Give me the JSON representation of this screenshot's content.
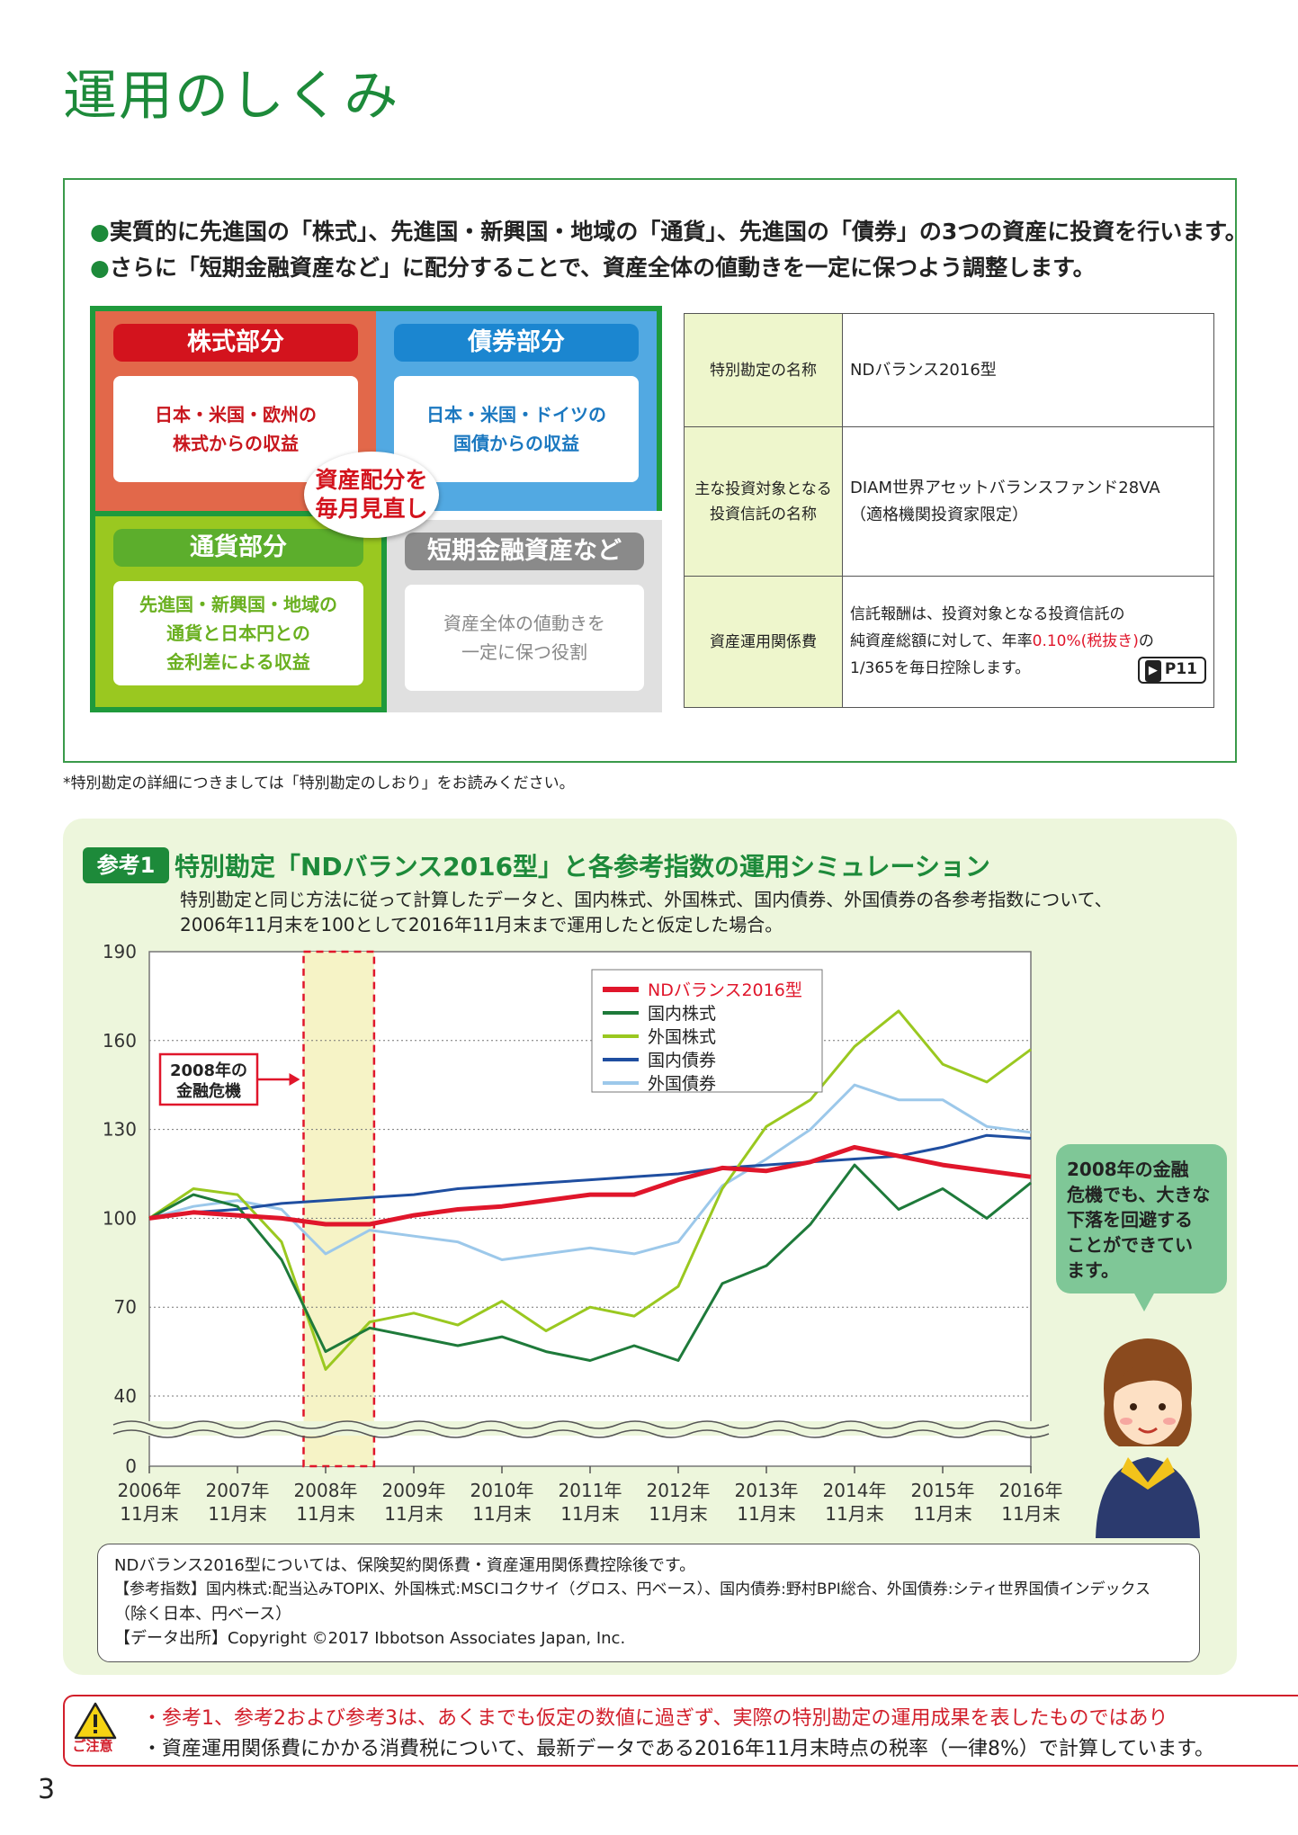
{
  "page": {
    "title": "運用のしくみ",
    "footnote": "*特別勘定の詳細につきましては「特別勘定のしおり」をお読みください。",
    "page_number": "3"
  },
  "structure": {
    "bullets": [
      "実質的に先進国の「株式」、先進国・新興国・地域の「通貨」、先進国の「債券」の3つの資産に投資を行います。",
      "さらに「短期金融資産など」に配分することで、資産全体の値動きを一定に保つよう調整します。"
    ],
    "bullet_mark": "●",
    "stock": {
      "title": "株式部分",
      "lines": [
        "日本・米国・欧州の",
        "株式からの収益"
      ]
    },
    "bond": {
      "title": "債券部分",
      "lines": [
        "日本・米国・ドイツの",
        "国債からの収益"
      ]
    },
    "currency": {
      "title": "通貨部分",
      "lines": [
        "先進国・新興国・地域の",
        "通貨と日本円との",
        "金利差による収益"
      ]
    },
    "short_term": {
      "title": "短期金融資産など",
      "lines": [
        "資産全体の値動きを",
        "一定に保つ役割"
      ]
    },
    "center": {
      "lines": [
        "資産配分を",
        "毎月見直し"
      ]
    },
    "colors": {
      "stock": "#e2684a",
      "bond": "#52a9e2",
      "currency": "#9ac820",
      "short_term": "#e0e0e0",
      "frame": "#1f9a3c"
    }
  },
  "info_table": {
    "rows": [
      {
        "key": "特別勘定の名称",
        "value_lines": [
          "NDバランス2016型"
        ]
      },
      {
        "key_lines": [
          "主な投資対象となる",
          "投資信託の名称"
        ],
        "value_lines": [
          "DIAM世界アセットバランスファンド28VA",
          "（適格機関投資家限定）"
        ]
      },
      {
        "key": "資産運用関係費",
        "fee_pre": "信託報酬は、投資対象となる投資信託の",
        "fee_mid_a": "純資産総額に対して、年率",
        "fee_rate": "0.10%(税抜き)",
        "fee_mid_b": "の",
        "fee_post": "1/365を毎日控除します。",
        "badge": "P11",
        "badge_mark": "▶"
      }
    ]
  },
  "simulation": {
    "tag": "参考1",
    "title": "特別勘定「NDバランス2016型」と各参考指数の運用シミュレーション",
    "desc_lines": [
      "特別勘定と同じ方法に従って計算したデータと、国内株式、外国株式、国内債券、外国債券の各参考指数について、",
      "2006年11月末を100として2016年11月末まで運用したと仮定した場合。"
    ],
    "speech_lines": [
      "2008年の金融",
      "危機でも、大きな",
      "下落を回避する",
      "ことができてい",
      "ます。"
    ],
    "notes": [
      "NDバランス2016型については、保険契約関係費・資産運用関係費控除後です。",
      "【参考指数】国内株式:配当込みTOPIX、外国株式:MSCIコクサイ（グロス、円ベース）、国内債券:野村BPI総合、外国債券:シティ世界国債インデックス",
      "（除く日本、円ベース）",
      "【データ出所】Copyright ©2017 Ibbotson Associates Japan, Inc."
    ]
  },
  "chart_data": {
    "type": "line",
    "y_ticks": [
      "190",
      "160",
      "130",
      "100",
      "70",
      "40",
      "0"
    ],
    "ylim": [
      40,
      190
    ],
    "y_break": true,
    "x_ticks": [
      [
        "2006年",
        "11月末"
      ],
      [
        "2007年",
        "11月末"
      ],
      [
        "2008年",
        "11月末"
      ],
      [
        "2009年",
        "11月末"
      ],
      [
        "2010年",
        "11月末"
      ],
      [
        "2011年",
        "11月末"
      ],
      [
        "2012年",
        "11月末"
      ],
      [
        "2013年",
        "11月末"
      ],
      [
        "2014年",
        "11月末"
      ],
      [
        "2015年",
        "11月末"
      ],
      [
        "2016年",
        "11月末"
      ]
    ],
    "annotation": {
      "lines": [
        "2008年の",
        "金融危機"
      ]
    },
    "x_years": [
      0,
      0.5,
      1,
      1.5,
      2,
      2.5,
      3,
      3.5,
      4,
      4.5,
      5,
      5.5,
      6,
      6.5,
      7,
      7.5,
      8,
      8.5,
      9,
      9.5,
      10
    ],
    "series": [
      {
        "name": "NDバランス2016型",
        "color": "#e0162b",
        "width": 5,
        "values": [
          100,
          102,
          101,
          100,
          98,
          98,
          101,
          103,
          104,
          106,
          108,
          108,
          113,
          117,
          116,
          119,
          124,
          121,
          118,
          116,
          114
        ]
      },
      {
        "name": "国内株式",
        "color": "#1e7a3a",
        "width": 3,
        "values": [
          100,
          108,
          104,
          86,
          55,
          63,
          60,
          57,
          60,
          55,
          52,
          57,
          52,
          78,
          84,
          98,
          118,
          103,
          110,
          100,
          112
        ]
      },
      {
        "name": "外国株式",
        "color": "#9ac820",
        "width": 3,
        "values": [
          100,
          110,
          108,
          92,
          49,
          65,
          68,
          64,
          72,
          62,
          70,
          67,
          77,
          110,
          131,
          140,
          158,
          170,
          152,
          146,
          157
        ]
      },
      {
        "name": "国内債券",
        "color": "#1f4ea0",
        "width": 3,
        "values": [
          100,
          102,
          103,
          105,
          106,
          107,
          108,
          110,
          111,
          112,
          113,
          114,
          115,
          117,
          118,
          119,
          120,
          121,
          124,
          128,
          127
        ]
      },
      {
        "name": "外国債券",
        "color": "#9cc8ea",
        "width": 3,
        "values": [
          100,
          104,
          106,
          103,
          88,
          96,
          94,
          92,
          86,
          88,
          90,
          88,
          92,
          111,
          120,
          130,
          145,
          140,
          140,
          131,
          129
        ]
      }
    ]
  },
  "caution": {
    "label": "ご注意",
    "icon": "warning-triangle-icon",
    "lines": [
      "・参考1、参考2および参考3は、あくまでも仮定の数値に過ぎず、実際の特別勘定の運用成果を表したものではあり",
      "・資産運用関係費にかかる消費税について、最新データである2016年11月末時点の税率（一律8%）で計算しています。"
    ]
  }
}
